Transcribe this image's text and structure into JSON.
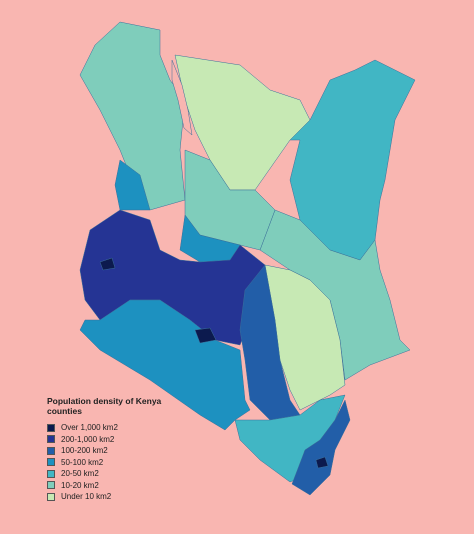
{
  "legend": {
    "title": "Population density of Kenya counties",
    "items": [
      {
        "label": "Over 1,000 km2",
        "color": "#0c1a4e"
      },
      {
        "label": "200-1,000 km2",
        "color": "#253494"
      },
      {
        "label": "100-200 km2",
        "color": "#225ea8"
      },
      {
        "label": "50-100 km2",
        "color": "#1d91c0"
      },
      {
        "label": "20-50 km2",
        "color": "#41b6c4"
      },
      {
        "label": "10-20 km2",
        "color": "#7fcdbb"
      },
      {
        "label": "Under 10 km2",
        "color": "#c7e9b4"
      }
    ]
  }
}
